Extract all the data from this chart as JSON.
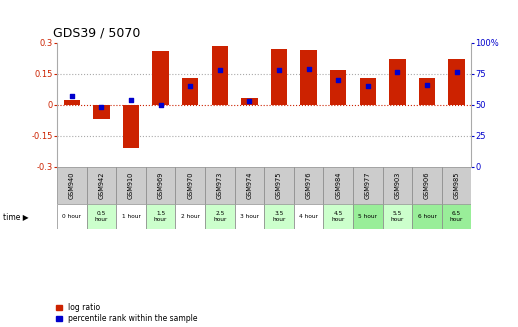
{
  "title": "GDS39 / 5070",
  "samples": [
    "GSM940",
    "GSM942",
    "GSM910",
    "GSM969",
    "GSM970",
    "GSM973",
    "GSM974",
    "GSM975",
    "GSM976",
    "GSM984",
    "GSM977",
    "GSM903",
    "GSM906",
    "GSM985"
  ],
  "times": [
    "0 hour",
    "0.5\nhour",
    "1 hour",
    "1.5\nhour",
    "2 hour",
    "2.5\nhour",
    "3 hour",
    "3.5\nhour",
    "4 hour",
    "4.5\nhour",
    "5 hour",
    "5.5\nhour",
    "6 hour",
    "6.5\nhour"
  ],
  "log_ratio": [
    0.02,
    -0.07,
    -0.21,
    0.26,
    0.13,
    0.285,
    0.03,
    0.27,
    0.265,
    0.165,
    0.13,
    0.22,
    0.13,
    0.22
  ],
  "percentile": [
    57,
    48,
    54,
    50,
    65,
    78,
    53,
    78,
    79,
    70,
    65,
    76,
    66,
    76
  ],
  "ylim": [
    -0.3,
    0.3
  ],
  "y2lim": [
    0,
    100
  ],
  "yticks": [
    -0.3,
    -0.15,
    0,
    0.15,
    0.3
  ],
  "y2ticks": [
    0,
    25,
    50,
    75,
    100
  ],
  "bar_color": "#cc2200",
  "dot_color": "#0000cc",
  "bg_color": "#ffffff",
  "plot_bg": "#ffffff",
  "time_colors": [
    "#ffffff",
    "#ccffcc",
    "#ffffff",
    "#ccffcc",
    "#ffffff",
    "#ccffcc",
    "#ffffff",
    "#ccffcc",
    "#ffffff",
    "#ccffcc",
    "#99ee99",
    "#ccffcc",
    "#99ee99",
    "#99ee99"
  ],
  "sample_bg": "#cccccc",
  "title_fontsize": 9,
  "tick_fontsize": 6,
  "bar_width": 0.55
}
